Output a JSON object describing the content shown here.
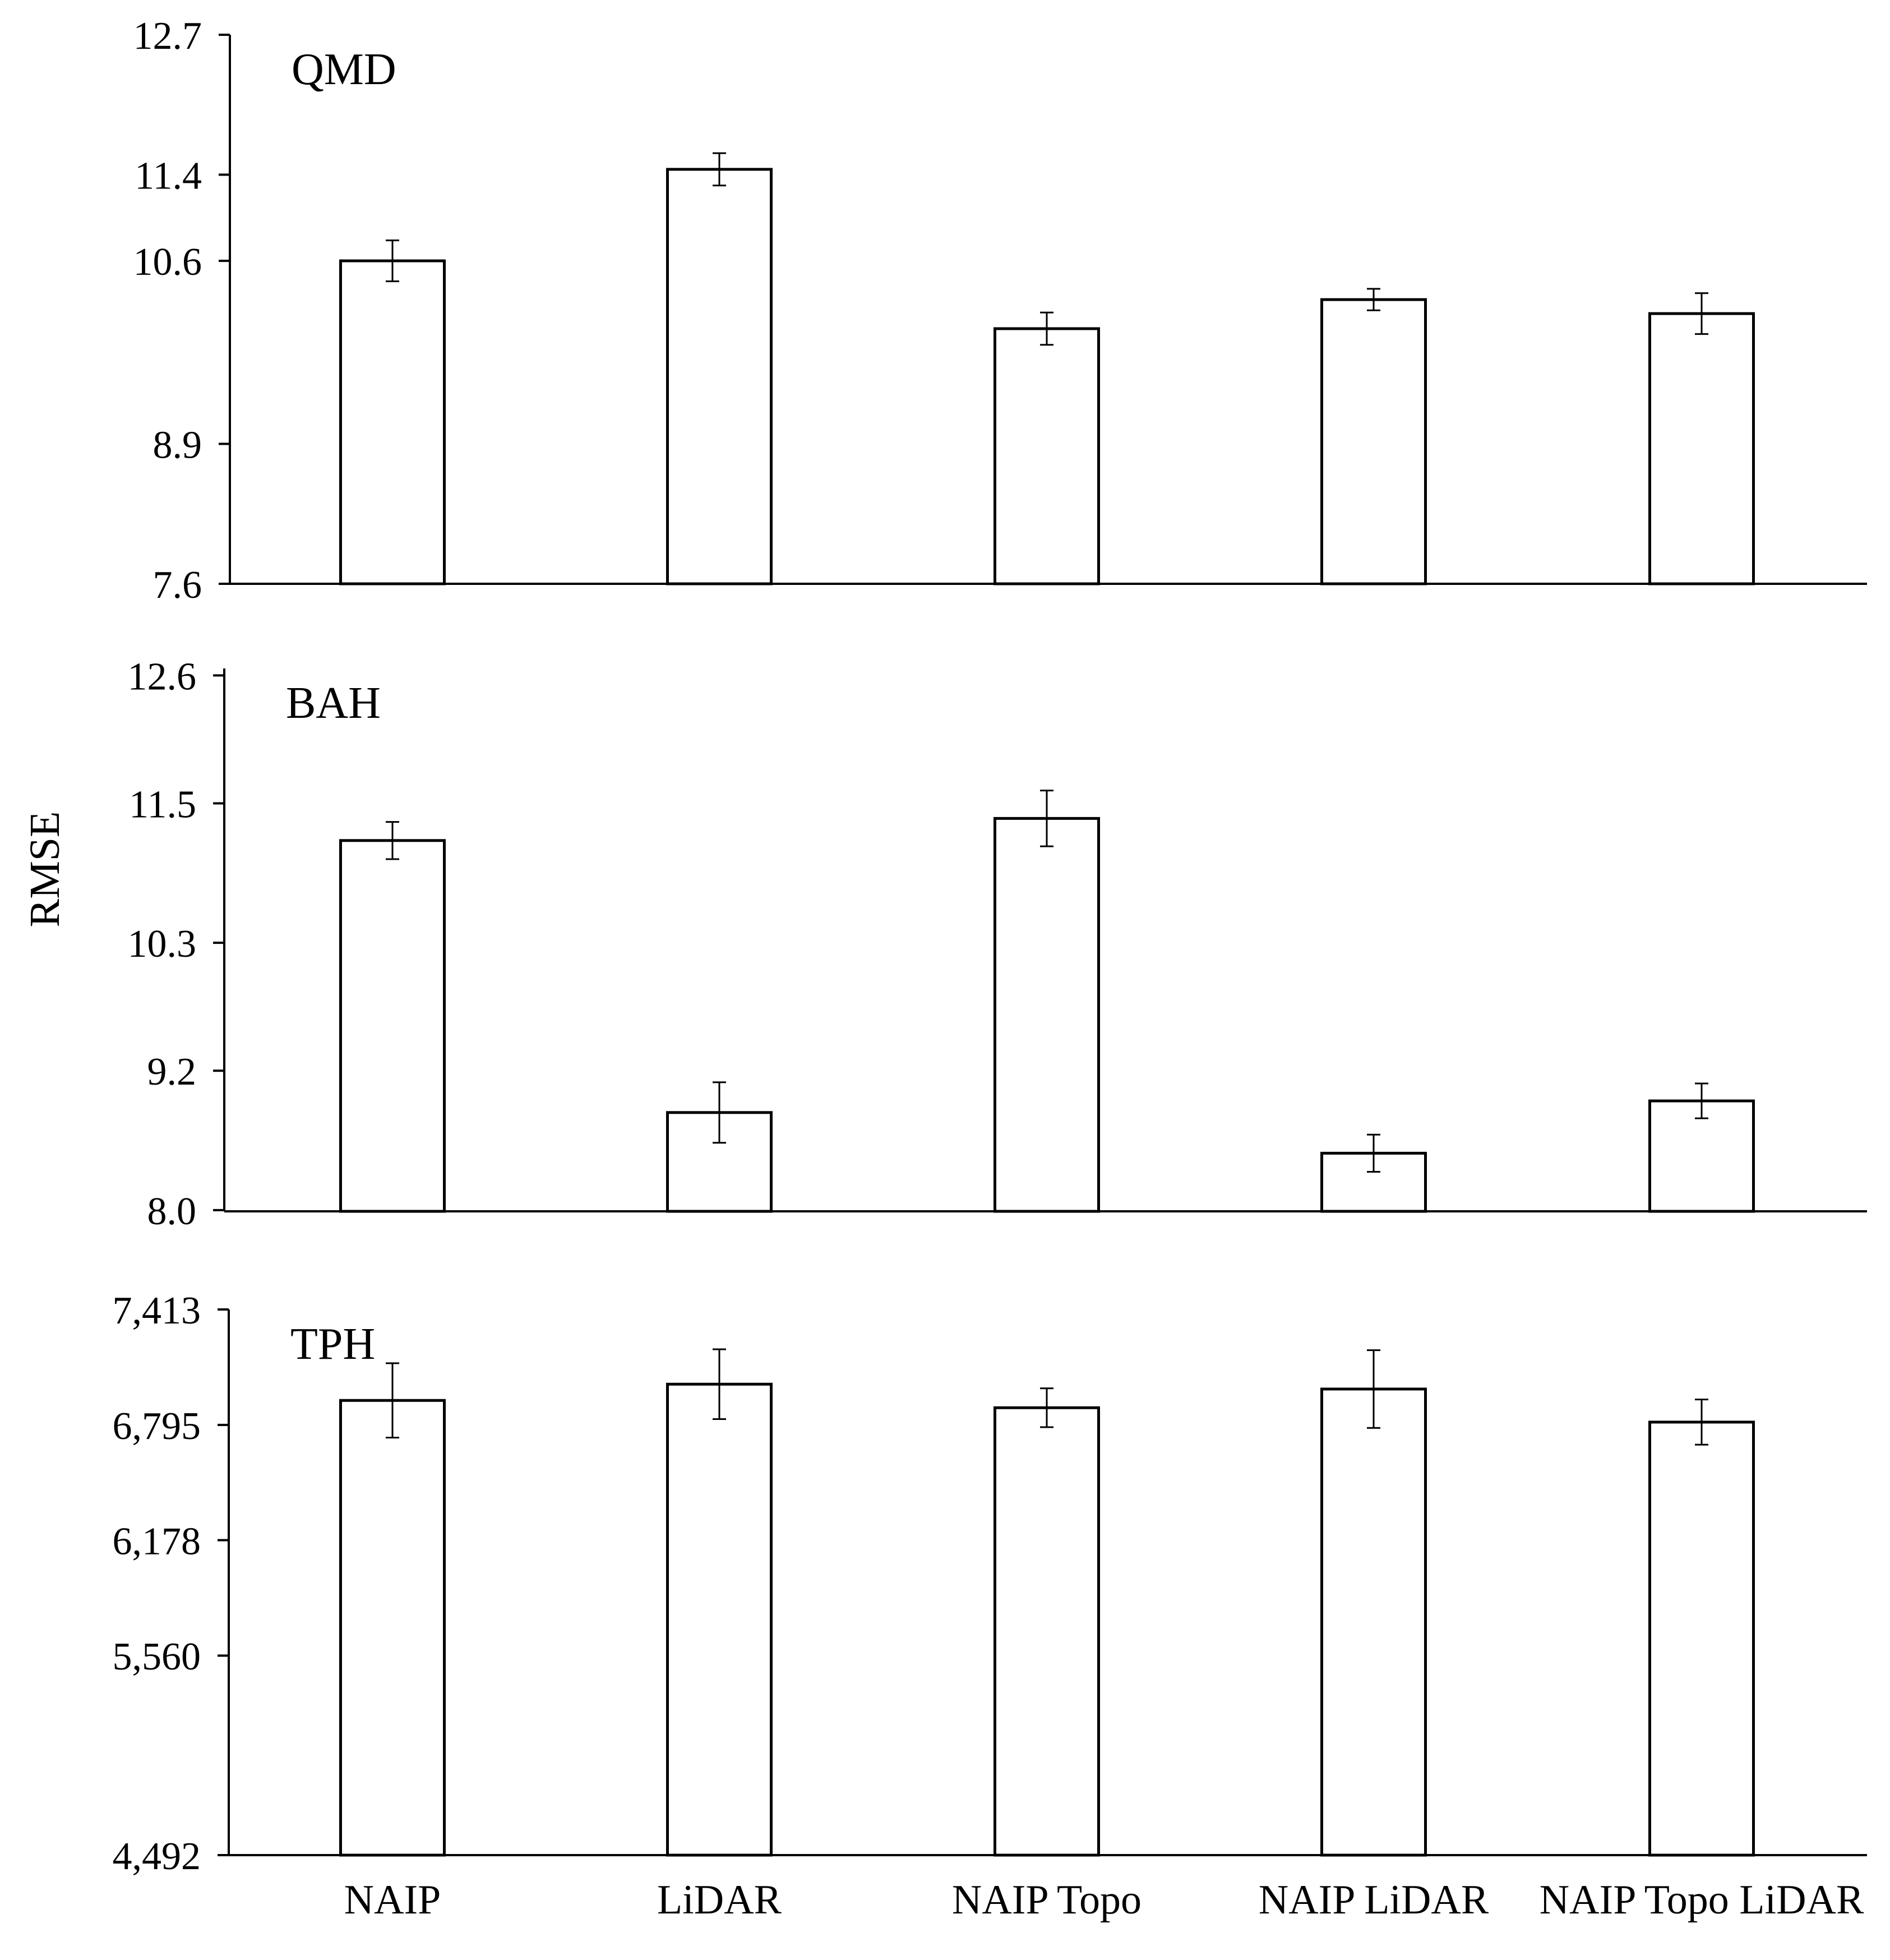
{
  "ylabel": "RMSE",
  "chart_data": [
    {
      "type": "bar",
      "title": "QMD",
      "categories": [
        "NAIP",
        "LiDAR",
        "NAIP Topo",
        "NAIP LiDAR",
        "NAIP Topo LiDAR"
      ],
      "values": [
        10.6,
        11.45,
        9.97,
        10.24,
        10.11
      ],
      "errors": [
        0.19,
        0.15,
        0.15,
        0.1,
        0.19
      ],
      "ylim": [
        7.6,
        12.7
      ],
      "yticks": [
        7.6,
        8.9,
        10.6,
        11.4,
        12.7
      ],
      "ytick_labels": [
        "7.6",
        "8.9",
        "10.6",
        "11.4",
        "12.7"
      ],
      "xlabel": "",
      "ylabel": "RMSE"
    },
    {
      "type": "bar",
      "title": "BAH",
      "categories": [
        "NAIP",
        "LiDAR",
        "NAIP Topo",
        "NAIP LiDAR",
        "NAIP Topo LiDAR"
      ],
      "values": [
        11.18,
        8.84,
        11.37,
        8.49,
        8.94
      ],
      "errors": [
        0.16,
        0.26,
        0.24,
        0.16,
        0.15
      ],
      "ylim": [
        7.99,
        12.66
      ],
      "yticks": [
        8.0,
        9.2,
        10.3,
        11.5,
        12.6
      ],
      "ytick_labels": [
        "8.0",
        "9.2",
        "10.3",
        "11.5",
        "12.6"
      ],
      "xlabel": "",
      "ylabel": "RMSE"
    },
    {
      "type": "bar",
      "title": "TPH",
      "categories": [
        "NAIP",
        "LiDAR",
        "NAIP Topo",
        "NAIP LiDAR",
        "NAIP Topo LiDAR"
      ],
      "values": [
        6926,
        7013,
        6887,
        6987,
        6810
      ],
      "errors": [
        199,
        187,
        104,
        208,
        121
      ],
      "ylim": [
        4492,
        7413
      ],
      "yticks": [
        4492,
        5560,
        6178,
        6795,
        7413
      ],
      "ytick_labels": [
        "4,492",
        "5,560",
        "6,178",
        "6,795",
        "7,413"
      ],
      "xlabel": "",
      "ylabel": "RMSE"
    }
  ]
}
